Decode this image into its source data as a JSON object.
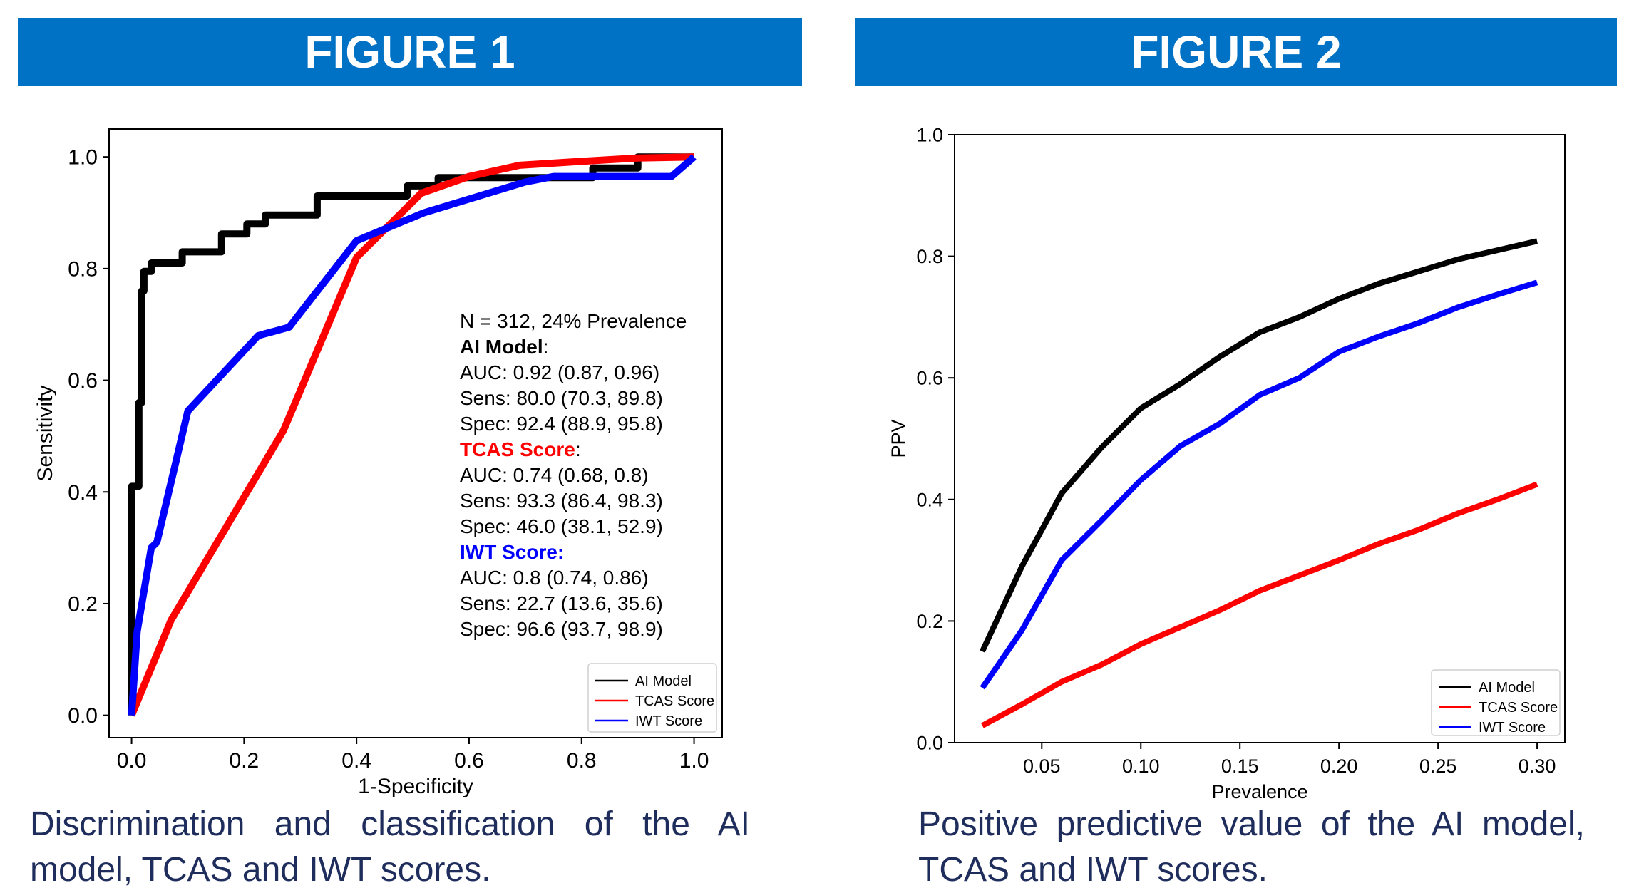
{
  "colors": {
    "banner": "#0072c6",
    "caption": "#1f2d5c",
    "ai": "#000000",
    "tcas": "#ff0000",
    "iwt": "#0000ff"
  },
  "figure1": {
    "banner": "FIGURE 1",
    "caption": "Discrimination and classification of the AI model, TCAS and IWT scores."
  },
  "figure2": {
    "banner": "FIGURE 2",
    "caption": "Positive predictive value of the AI model, TCAS and IWT scores."
  },
  "chart_data": [
    {
      "type": "line",
      "title": "",
      "xlabel": "1-Specificity",
      "ylabel": "Sensitivity",
      "xlim": [
        -0.04,
        1.05
      ],
      "ylim": [
        -0.04,
        1.05
      ],
      "xticks": [
        "0.0",
        "0.2",
        "0.4",
        "0.6",
        "0.8",
        "1.0"
      ],
      "yticks": [
        "0.0",
        "0.2",
        "0.4",
        "0.6",
        "0.8",
        "1.0"
      ],
      "grid": false,
      "legend_position": "bottom-right",
      "annotation": {
        "header": "N = 312,  24% Prevalence",
        "groups": [
          {
            "title": "AI Model",
            "suffix": ":",
            "color": "#000000",
            "lines": [
              "AUC: 0.92 (0.87, 0.96)",
              "Sens: 80.0 (70.3, 89.8)",
              "Spec: 92.4 (88.9, 95.8)"
            ]
          },
          {
            "title": "TCAS Score",
            "suffix": ":",
            "color": "#ff0000",
            "lines": [
              "AUC: 0.74 (0.68, 0.8)",
              "Sens: 93.3 (86.4, 98.3)",
              "Spec: 46.0 (38.1, 52.9)"
            ]
          },
          {
            "title": "IWT Score:",
            "suffix": "",
            "color": "#0000ff",
            "lines": [
              "AUC: 0.8 (0.74, 0.86)",
              "Sens: 22.7 (13.6, 35.6)",
              "Spec: 96.6 (93.7, 98.9)"
            ]
          }
        ]
      },
      "series": [
        {
          "name": "AI Model",
          "color": "#000000",
          "points": [
            [
              0,
              0
            ],
            [
              0,
              0.41
            ],
            [
              0.013,
              0.41
            ],
            [
              0.013,
              0.56
            ],
            [
              0.018,
              0.56
            ],
            [
              0.018,
              0.76
            ],
            [
              0.022,
              0.76
            ],
            [
              0.022,
              0.795
            ],
            [
              0.035,
              0.795
            ],
            [
              0.035,
              0.81
            ],
            [
              0.09,
              0.81
            ],
            [
              0.09,
              0.83
            ],
            [
              0.16,
              0.83
            ],
            [
              0.16,
              0.862
            ],
            [
              0.205,
              0.862
            ],
            [
              0.205,
              0.88
            ],
            [
              0.238,
              0.88
            ],
            [
              0.238,
              0.896
            ],
            [
              0.33,
              0.896
            ],
            [
              0.33,
              0.93
            ],
            [
              0.49,
              0.93
            ],
            [
              0.49,
              0.948
            ],
            [
              0.545,
              0.948
            ],
            [
              0.545,
              0.963
            ],
            [
              0.82,
              0.963
            ],
            [
              0.82,
              0.98
            ],
            [
              0.9,
              0.98
            ],
            [
              0.9,
              1.0
            ],
            [
              1.0,
              1.0
            ]
          ]
        },
        {
          "name": "TCAS Score",
          "color": "#ff0000",
          "points": [
            [
              0,
              0
            ],
            [
              0.07,
              0.17
            ],
            [
              0.27,
              0.51
            ],
            [
              0.4,
              0.82
            ],
            [
              0.515,
              0.935
            ],
            [
              0.6,
              0.965
            ],
            [
              0.69,
              0.985
            ],
            [
              0.8,
              0.992
            ],
            [
              0.9,
              0.998
            ],
            [
              1.0,
              1.0
            ]
          ]
        },
        {
          "name": "IWT Score",
          "color": "#0000ff",
          "points": [
            [
              0,
              0
            ],
            [
              0.01,
              0.15
            ],
            [
              0.035,
              0.3
            ],
            [
              0.045,
              0.31
            ],
            [
              0.1,
              0.545
            ],
            [
              0.225,
              0.68
            ],
            [
              0.28,
              0.695
            ],
            [
              0.4,
              0.85
            ],
            [
              0.52,
              0.9
            ],
            [
              0.7,
              0.955
            ],
            [
              0.75,
              0.965
            ],
            [
              0.96,
              0.965
            ],
            [
              1.0,
              1.0
            ]
          ]
        }
      ]
    },
    {
      "type": "line",
      "title": "",
      "xlabel": "Prevalence",
      "ylabel": "PPV",
      "xlim": [
        0.006,
        0.314
      ],
      "ylim": [
        0.0,
        1.0
      ],
      "xticks": [
        "0.05",
        "0.10",
        "0.15",
        "0.20",
        "0.25",
        "0.30"
      ],
      "yticks": [
        "0.0",
        "0.2",
        "0.4",
        "0.6",
        "0.8",
        "1.0"
      ],
      "grid": false,
      "legend_position": "bottom-right",
      "x": [
        0.02,
        0.04,
        0.06,
        0.08,
        0.1,
        0.12,
        0.14,
        0.16,
        0.18,
        0.2,
        0.22,
        0.24,
        0.26,
        0.28,
        0.3
      ],
      "series": [
        {
          "name": "AI Model",
          "color": "#000000",
          "values": [
            0.15,
            0.29,
            0.41,
            0.485,
            0.55,
            0.59,
            0.635,
            0.675,
            0.7,
            0.73,
            0.755,
            0.775,
            0.795,
            0.81,
            0.825
          ]
        },
        {
          "name": "TCAS Score",
          "color": "#ff0000",
          "values": [
            0.028,
            0.063,
            0.1,
            0.128,
            0.162,
            0.19,
            0.218,
            0.25,
            0.275,
            0.3,
            0.327,
            0.35,
            0.377,
            0.4,
            0.425
          ]
        },
        {
          "name": "IWT Score",
          "color": "#0000ff",
          "values": [
            0.09,
            0.185,
            0.3,
            0.365,
            0.432,
            0.488,
            0.525,
            0.572,
            0.6,
            0.643,
            0.668,
            0.69,
            0.716,
            0.737,
            0.757
          ]
        }
      ]
    }
  ]
}
